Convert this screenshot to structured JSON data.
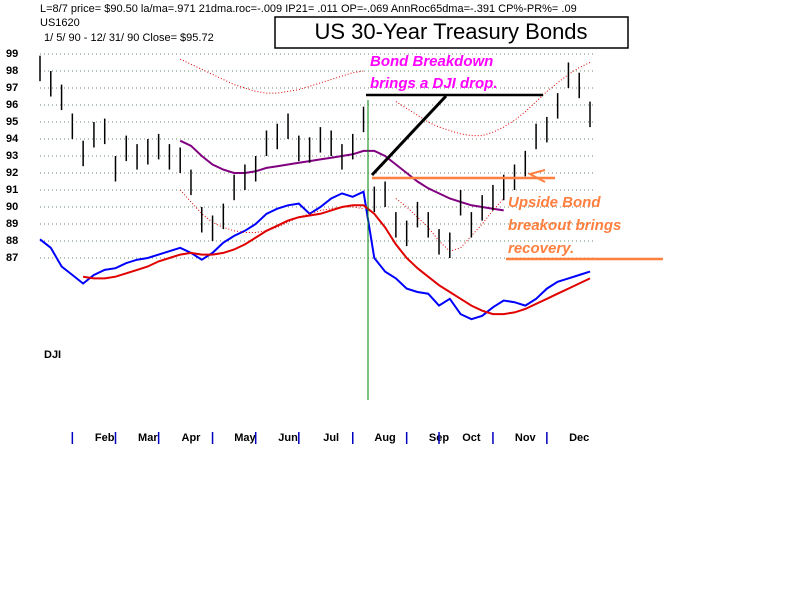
{
  "chart_data": {
    "type": "ohlc-line",
    "header": "L=8/7  price= $90.50  la/ma=.971 21dma.roc=-.009 IP21= .011 OP=-.069 AnnRoc65dma=-.391 CP%-PR%=  .09",
    "symbol": "US1620",
    "period": "1/ 5/ 90 -  12/ 31/ 90   Close= $95.72",
    "title": "US 30-Year Treasury Bonds",
    "dji_label": "DJI",
    "annotations": [
      {
        "lines": [
          "Bond Breakdown",
          "brings a DJI drop."
        ]
      },
      {
        "lines": [
          "Upside Bond",
          "breakout brings",
          "recovery."
        ]
      }
    ],
    "categories": [
      null,
      null,
      null,
      null,
      null,
      null,
      "Feb",
      null,
      null,
      null,
      "Mar",
      null,
      null,
      null,
      "Apr",
      null,
      null,
      null,
      null,
      "May",
      null,
      null,
      null,
      "Jun",
      null,
      null,
      null,
      "Jul",
      null,
      null,
      null,
      null,
      "Aug",
      null,
      null,
      null,
      null,
      "Sep",
      null,
      null,
      "Oct",
      null,
      null,
      null,
      null,
      "Nov",
      null,
      null,
      null,
      null,
      "Dec",
      null
    ],
    "ylim": [
      78,
      100
    ],
    "yticks": [
      87,
      88,
      89,
      90,
      91,
      92,
      93,
      94,
      95,
      96,
      97,
      98,
      99
    ],
    "grid": true,
    "bond_color": "#000000",
    "bond_high": [
      98.9,
      98.0,
      97.2,
      95.5,
      93.9,
      95.0,
      95.2,
      93.0,
      94.2,
      93.7,
      94.0,
      94.3,
      93.7,
      93.5,
      92.2,
      90.0,
      89.5,
      90.2,
      91.9,
      92.5,
      93.0,
      94.5,
      94.9,
      95.5,
      94.2,
      94.1,
      94.7,
      94.5,
      93.7,
      94.3,
      95.9,
      91.2,
      91.5,
      89.7,
      89.2,
      90.3,
      89.7,
      88.7,
      88.5,
      91.0,
      89.7,
      90.7,
      91.3,
      91.9,
      92.5,
      93.3,
      94.9,
      95.3,
      96.7,
      98.5,
      97.9,
      96.2
    ],
    "bond_low": [
      97.4,
      96.5,
      95.7,
      94.0,
      92.4,
      93.5,
      93.7,
      91.5,
      92.7,
      92.2,
      92.5,
      92.8,
      92.2,
      92.0,
      90.7,
      88.5,
      88.0,
      88.7,
      90.4,
      91.0,
      91.5,
      93.0,
      93.4,
      94.0,
      92.7,
      92.6,
      93.2,
      93.0,
      92.2,
      92.8,
      94.4,
      89.7,
      90.0,
      88.2,
      87.7,
      88.8,
      88.2,
      87.2,
      87.0,
      89.5,
      88.2,
      89.2,
      89.8,
      90.4,
      91.0,
      91.8,
      93.4,
      93.8,
      95.2,
      97.0,
      96.4,
      94.7
    ],
    "series": [
      {
        "color": "#0000ff",
        "style": "solid",
        "values": [
          88.1,
          87.6,
          86.5,
          86.0,
          85.5,
          86.0,
          86.3,
          86.4,
          86.7,
          86.9,
          87.0,
          87.2,
          87.4,
          87.6,
          87.3,
          86.9,
          87.3,
          87.9,
          88.3,
          88.6,
          89.0,
          89.6,
          89.9,
          90.1,
          90.2,
          89.6,
          90.0,
          90.5,
          90.8,
          90.6,
          90.9,
          87.0,
          86.2,
          85.8,
          85.2,
          85.0,
          84.9,
          84.2,
          84.6,
          83.7,
          83.4,
          83.6,
          84.1,
          84.5,
          84.4,
          84.2,
          84.6,
          85.2,
          85.6,
          85.8,
          86.0,
          86.2
        ]
      },
      {
        "color": "#e00000",
        "style": "solid",
        "values": [
          null,
          null,
          null,
          null,
          85.9,
          85.8,
          85.8,
          85.9,
          86.1,
          86.3,
          86.5,
          86.8,
          87.0,
          87.2,
          87.3,
          87.2,
          87.2,
          87.3,
          87.5,
          87.8,
          88.2,
          88.6,
          88.9,
          89.2,
          89.4,
          89.5,
          89.6,
          89.8,
          90.0,
          90.1,
          90.1,
          89.6,
          88.8,
          87.8,
          87.0,
          86.4,
          85.9,
          85.4,
          85.0,
          84.6,
          84.2,
          83.9,
          83.7,
          83.7,
          83.8,
          84.0,
          84.3,
          84.6,
          84.9,
          85.2,
          85.5,
          85.8
        ]
      },
      {
        "color": "#800080",
        "style": "solid",
        "values": [
          null,
          null,
          null,
          null,
          null,
          null,
          null,
          null,
          null,
          null,
          null,
          null,
          null,
          93.9,
          93.6,
          93.0,
          92.5,
          92.2,
          92.0,
          92.0,
          92.1,
          92.3,
          92.4,
          92.5,
          92.6,
          92.7,
          92.8,
          92.9,
          93.0,
          93.1,
          93.3,
          93.3,
          93.0,
          92.5,
          92.0,
          91.5,
          91.1,
          90.8,
          90.5,
          90.3,
          90.1,
          90.0,
          89.9,
          89.8,
          null,
          null,
          null,
          null,
          null,
          null,
          null,
          null
        ]
      },
      {
        "color": "#e00000",
        "style": "dotted",
        "values": [
          null,
          null,
          null,
          null,
          null,
          null,
          null,
          null,
          null,
          null,
          null,
          null,
          null,
          98.7,
          98.4,
          98.1,
          97.8,
          97.5,
          97.2,
          97.0,
          96.8,
          96.7,
          96.7,
          96.8,
          96.9,
          97.1,
          97.3,
          97.5,
          97.7,
          97.9,
          98.0,
          null,
          null,
          96.2,
          95.8,
          95.4,
          95.0,
          94.7,
          94.5,
          94.3,
          94.2,
          94.2,
          94.4,
          94.7,
          95.1,
          95.6,
          96.2,
          96.8,
          97.3,
          97.8,
          98.2,
          98.5
        ]
      },
      {
        "color": "#e00000",
        "style": "dotted",
        "values": [
          null,
          null,
          null,
          null,
          null,
          null,
          null,
          null,
          null,
          null,
          null,
          null,
          null,
          91.0,
          90.3,
          89.6,
          89.1,
          88.8,
          88.6,
          88.5,
          88.5,
          88.6,
          88.8,
          89.1,
          89.4,
          89.6,
          89.8,
          89.9,
          90.0,
          90.0,
          89.9,
          null,
          null,
          90.5,
          90.0,
          89.4,
          88.8,
          88.0,
          87.4,
          87.6,
          88.3,
          89.0,
          89.8,
          90.5,
          null,
          null,
          null,
          null,
          null,
          null,
          null,
          null
        ]
      }
    ]
  }
}
